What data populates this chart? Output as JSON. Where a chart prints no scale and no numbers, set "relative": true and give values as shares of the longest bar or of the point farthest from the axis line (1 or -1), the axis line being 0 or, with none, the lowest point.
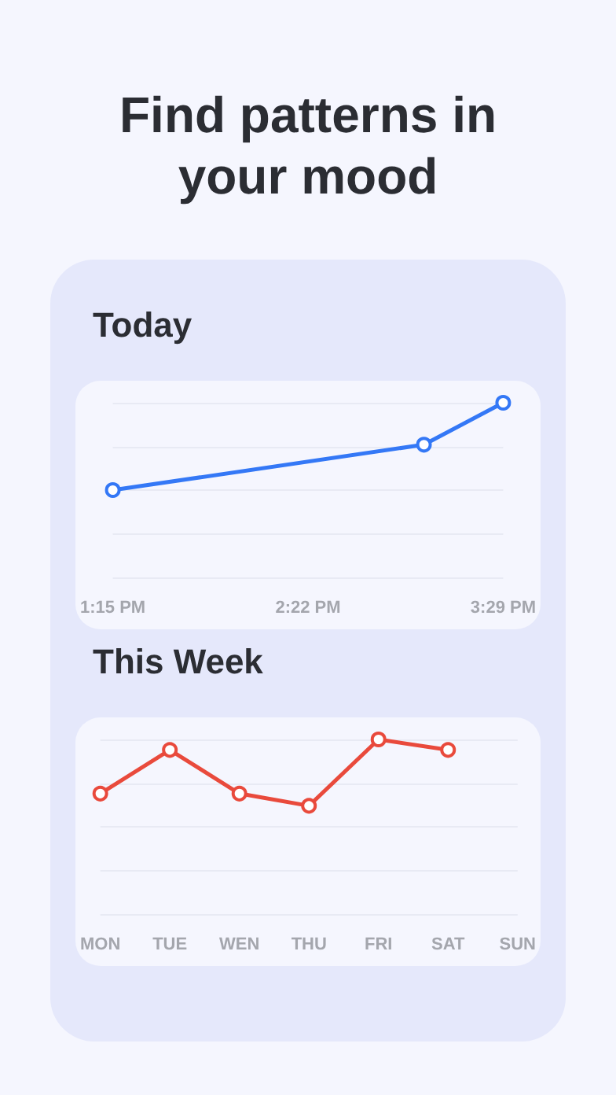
{
  "chart_data": [
    {
      "type": "line",
      "title": "Today",
      "annotations": [
        "Find patterns in your mood"
      ],
      "x": [
        13.25,
        15.03,
        15.4833
      ],
      "xlim": [
        13.25,
        15.4833
      ],
      "xticks": [
        {
          "value": 13.25,
          "label": "1:15 PM"
        },
        {
          "value": 14.3667,
          "label": "2:22 PM"
        },
        {
          "value": 15.4833,
          "label": "3:29 PM"
        }
      ],
      "series": [
        {
          "color": "#3478f6",
          "values": [
            0.5,
            0.76,
            1
          ]
        }
      ],
      "relative": true,
      "grid": "y",
      "marker": "circle",
      "line_style": "solid"
    },
    {
      "type": "line",
      "title": "This Week",
      "categories": [
        "MON",
        "TUE",
        "WEN",
        "THU",
        "FRI",
        "SAT",
        "SUN"
      ],
      "series": [
        {
          "color": "#e94a3c",
          "values": [
            0.69,
            0.94,
            0.69,
            0.62,
            1,
            0.94,
            null
          ]
        }
      ],
      "relative": true,
      "grid": "y",
      "marker": "circle",
      "line_style": "solid"
    }
  ]
}
